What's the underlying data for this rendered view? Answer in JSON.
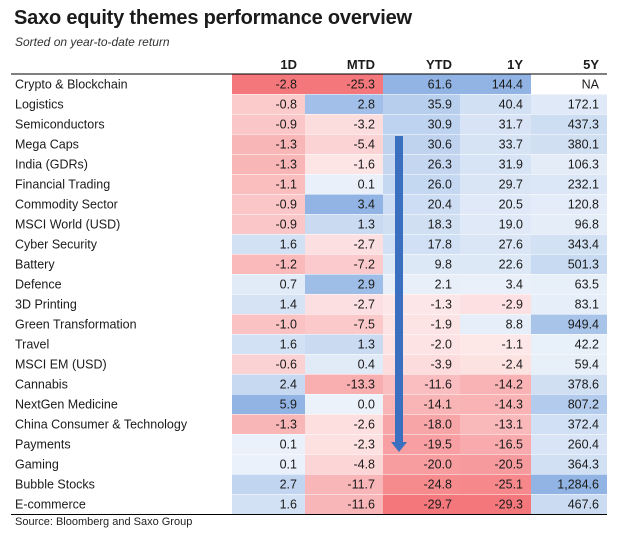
{
  "title": "Saxo equity themes performance overview",
  "subtitle": "Sorted on year-to-date return",
  "source": "Source: Bloomberg and Saxo Group",
  "colors": {
    "positive": "#5b8fd6",
    "negative": "#f25a5e",
    "neutral": "#ffffff",
    "arrow": "#3b6fc0",
    "line": "#000000"
  },
  "chart_data": {
    "type": "table",
    "columns": [
      "1D",
      "MTD",
      "YTD",
      "1Y",
      "5Y"
    ],
    "rows": [
      {
        "name": "Crypto & Blockchain",
        "values": [
          "-2.8",
          "-25.3",
          "61.6",
          "144.4",
          "NA"
        ]
      },
      {
        "name": "Logistics",
        "values": [
          "-0.8",
          "2.8",
          "35.9",
          "40.4",
          "172.1"
        ]
      },
      {
        "name": "Semiconductors",
        "values": [
          "-0.9",
          "-3.2",
          "30.9",
          "31.7",
          "437.3"
        ]
      },
      {
        "name": "Mega Caps",
        "values": [
          "-1.3",
          "-5.4",
          "30.6",
          "33.7",
          "380.1"
        ]
      },
      {
        "name": "India (GDRs)",
        "values": [
          "-1.3",
          "-1.6",
          "26.3",
          "31.9",
          "106.3"
        ]
      },
      {
        "name": "Financial Trading",
        "values": [
          "-1.1",
          "0.1",
          "26.0",
          "29.7",
          "232.1"
        ]
      },
      {
        "name": "Commodity Sector",
        "values": [
          "-0.9",
          "3.4",
          "20.4",
          "20.5",
          "120.8"
        ]
      },
      {
        "name": "MSCI World (USD)",
        "values": [
          "-0.9",
          "1.3",
          "18.3",
          "19.0",
          "96.8"
        ]
      },
      {
        "name": "Cyber Security",
        "values": [
          "1.6",
          "-2.7",
          "17.8",
          "27.6",
          "343.4"
        ]
      },
      {
        "name": "Battery",
        "values": [
          "-1.2",
          "-7.2",
          "9.8",
          "22.6",
          "501.3"
        ]
      },
      {
        "name": "Defence",
        "values": [
          "0.7",
          "2.9",
          "2.1",
          "3.4",
          "63.5"
        ]
      },
      {
        "name": "3D Printing",
        "values": [
          "1.4",
          "-2.7",
          "-1.3",
          "-2.9",
          "83.1"
        ]
      },
      {
        "name": "Green Transformation",
        "values": [
          "-1.0",
          "-7.5",
          "-1.9",
          "8.8",
          "949.4"
        ]
      },
      {
        "name": "Travel",
        "values": [
          "1.6",
          "1.3",
          "-2.0",
          "-1.1",
          "42.2"
        ]
      },
      {
        "name": "MSCI EM (USD)",
        "values": [
          "-0.6",
          "0.4",
          "-3.9",
          "-2.4",
          "59.4"
        ]
      },
      {
        "name": "Cannabis",
        "values": [
          "2.4",
          "-13.3",
          "-11.6",
          "-14.2",
          "378.6"
        ]
      },
      {
        "name": "NextGen Medicine",
        "values": [
          "5.9",
          "0.0",
          "-14.1",
          "-14.3",
          "807.2"
        ]
      },
      {
        "name": "China Consumer & Technology",
        "values": [
          "-1.3",
          "-2.6",
          "-18.0",
          "-13.1",
          "372.4"
        ]
      },
      {
        "name": "Payments",
        "values": [
          "0.1",
          "-2.3",
          "-19.5",
          "-16.5",
          "260.4"
        ]
      },
      {
        "name": "Gaming",
        "values": [
          "0.1",
          "-4.8",
          "-20.0",
          "-20.5",
          "364.3"
        ]
      },
      {
        "name": "Bubble Stocks",
        "values": [
          "2.7",
          "-11.7",
          "-24.8",
          "-25.1",
          "1,284.6"
        ]
      },
      {
        "name": "E-commerce",
        "values": [
          "1.6",
          "-11.6",
          "-29.7",
          "-29.3",
          "467.6"
        ]
      }
    ],
    "annotations": [
      "arrow pointing down along YTD column (sorted by YTD)"
    ]
  }
}
